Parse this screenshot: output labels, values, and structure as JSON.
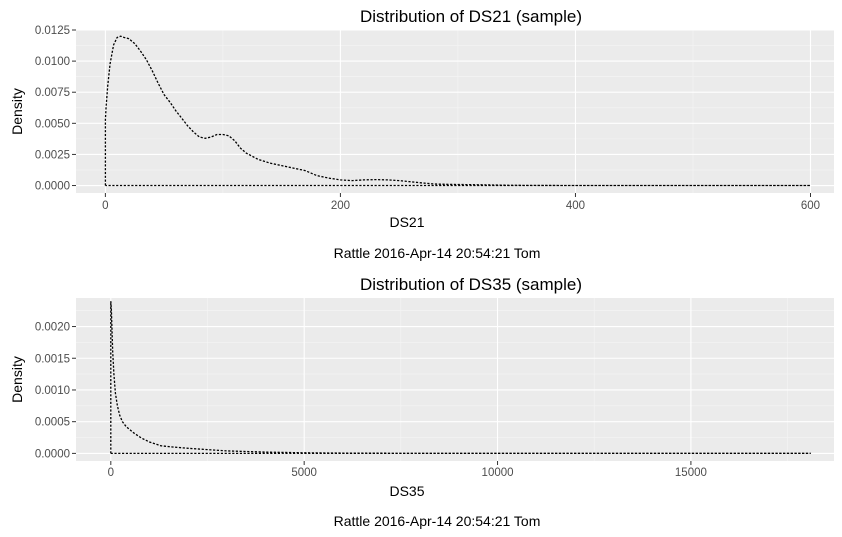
{
  "chart_data": [
    {
      "type": "line",
      "title": "Distribution of DS21 (sample)",
      "xlabel": "DS21",
      "ylabel": "Density",
      "caption": "Rattle 2016-Apr-14 20:54:21 Tom",
      "xlim": [
        -25,
        620
      ],
      "ylim": [
        -0.0006,
        0.0125
      ],
      "x_ticks": [
        0,
        200,
        400,
        600
      ],
      "y_ticks": [
        0.0,
        0.0025,
        0.005,
        0.0075,
        0.01,
        0.0125
      ],
      "x_tick_labels": [
        "0",
        "200",
        "400",
        "600"
      ],
      "y_tick_labels": [
        "0.0000",
        "0.0025",
        "0.0050",
        "0.0075",
        "0.0100",
        "0.0125"
      ],
      "grid": true,
      "line_style": "dotted",
      "series": [
        {
          "x": [
            0,
            0,
            0.5,
            2,
            4,
            7,
            10,
            13,
            16,
            20,
            25,
            30,
            35,
            40,
            45,
            50,
            55,
            60,
            65,
            70,
            75,
            80,
            85,
            90,
            95,
            100,
            105,
            110,
            115,
            120,
            130,
            140,
            150,
            160,
            170,
            180,
            190,
            200,
            210,
            220,
            230,
            240,
            250,
            260,
            270,
            280,
            290,
            300,
            320,
            340,
            360,
            400,
            450,
            500,
            550,
            600,
            597,
            0
          ],
          "y": [
            0,
            0.0053,
            0.0062,
            0.008,
            0.0098,
            0.0113,
            0.0119,
            0.012,
            0.0119,
            0.0118,
            0.0114,
            0.0108,
            0.0101,
            0.0092,
            0.0082,
            0.0073,
            0.0067,
            0.006,
            0.0054,
            0.0048,
            0.0043,
            0.0039,
            0.0038,
            0.0039,
            0.0041,
            0.0041,
            0.004,
            0.0036,
            0.003,
            0.0026,
            0.0021,
            0.0018,
            0.0016,
            0.0014,
            0.0012,
            0.0008,
            0.0006,
            0.00045,
            0.0004,
            0.00045,
            0.00048,
            0.00045,
            0.0004,
            0.0003,
            0.0002,
            0.00012,
            0.0001,
            8e-05,
            6e-05,
            3e-05,
            1e-05,
            5e-06,
            2e-06,
            1e-06,
            1e-06,
            1e-06,
            0,
            0
          ]
        }
      ]
    },
    {
      "type": "line",
      "title": "Distribution of DS35 (sample)",
      "xlabel": "DS35",
      "ylabel": "Density",
      "caption": "Rattle 2016-Apr-14 20:54:21 Tom",
      "xlim": [
        -900,
        18700
      ],
      "ylim": [
        -0.00012,
        0.00245
      ],
      "x_ticks": [
        0,
        5000,
        10000,
        15000
      ],
      "y_ticks": [
        0.0,
        0.0005,
        0.001,
        0.0015,
        0.002
      ],
      "x_tick_labels": [
        "0",
        "5000",
        "10000",
        "15000"
      ],
      "y_tick_labels": [
        "0.0000",
        "0.0005",
        "0.0010",
        "0.0015",
        "0.0020"
      ],
      "grid": true,
      "line_style": "dotted",
      "series": [
        {
          "x": [
            0,
            0,
            15,
            30,
            50,
            80,
            120,
            170,
            230,
            300,
            400,
            500,
            600,
            800,
            1000,
            1300,
            1600,
            2000,
            2500,
            3000,
            3500,
            4000,
            5000,
            6000,
            8000,
            10000,
            12000,
            14000,
            16000,
            18100,
            18000,
            0
          ],
          "y": [
            0,
            0.0024,
            0.00225,
            0.00195,
            0.0016,
            0.00125,
            0.00095,
            0.00075,
            0.0006,
            0.0005,
            0.00042,
            0.00037,
            0.00032,
            0.00024,
            0.00018,
            0.00012,
            0.0001,
            8e-05,
            6e-05,
            4e-05,
            3e-05,
            2e-05,
            1e-05,
            5e-06,
            2e-06,
            1e-06,
            1e-06,
            1e-06,
            1e-06,
            1e-06,
            0,
            0
          ]
        }
      ]
    }
  ]
}
